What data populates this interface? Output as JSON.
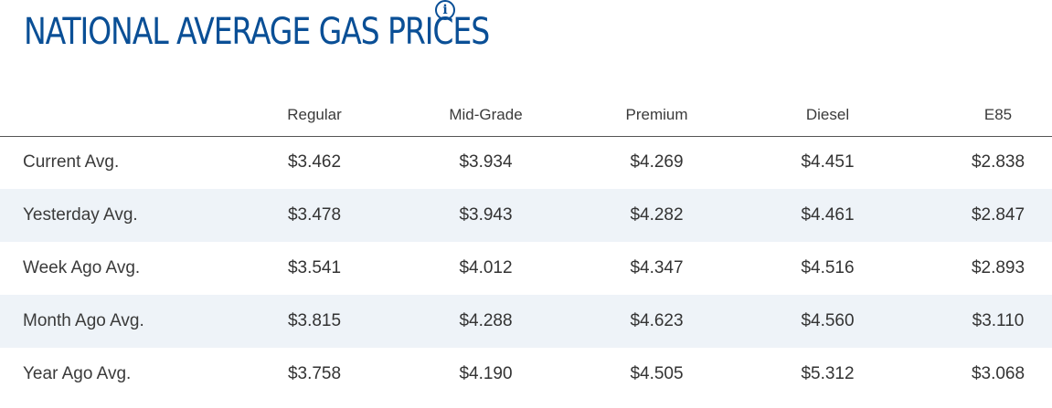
{
  "header": {
    "title": "NATIONAL AVERAGE GAS PRICES",
    "info_icon": "info-icon",
    "info_glyph": "i"
  },
  "colors": {
    "title": "#0a4f96",
    "row_shade": "#eef3f8",
    "text": "#333333"
  },
  "table": {
    "columns": [
      "",
      "Regular",
      "Mid-Grade",
      "Premium",
      "Diesel",
      "E85"
    ],
    "rows": [
      {
        "label": "Current Avg.",
        "values": [
          "$3.462",
          "$3.934",
          "$4.269",
          "$4.451",
          "$2.838"
        ]
      },
      {
        "label": "Yesterday Avg.",
        "values": [
          "$3.478",
          "$3.943",
          "$4.282",
          "$4.461",
          "$2.847"
        ]
      },
      {
        "label": "Week Ago Avg.",
        "values": [
          "$3.541",
          "$4.012",
          "$4.347",
          "$4.516",
          "$2.893"
        ]
      },
      {
        "label": "Month Ago Avg.",
        "values": [
          "$3.815",
          "$4.288",
          "$4.623",
          "$4.560",
          "$3.110"
        ]
      },
      {
        "label": "Year Ago Avg.",
        "values": [
          "$3.758",
          "$4.190",
          "$4.505",
          "$5.312",
          "$3.068"
        ]
      }
    ]
  }
}
